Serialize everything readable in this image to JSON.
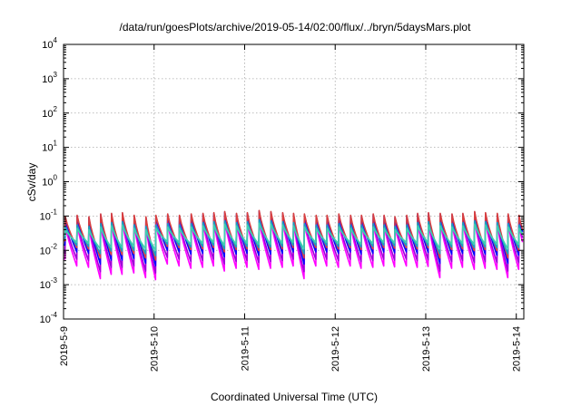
{
  "chart_data": {
    "type": "line",
    "title": "/data/run/goesPlots/archive/2019-05-14/02:00/flux/../bryn/5daysMars.plot",
    "xlabel": "Coordinated Universal Time (UTC)",
    "ylabel": "cSv/day",
    "y_scale": "log",
    "ylim": [
      0.0001,
      10000
    ],
    "xlim": [
      "2019-05-09",
      "2019-05-14 02:00"
    ],
    "grid": true,
    "legend": "none",
    "x_ticks": [
      {
        "value": 0,
        "label": "2019-5-9"
      },
      {
        "value": 1,
        "label": "2019-5-10"
      },
      {
        "value": 2,
        "label": "2019-5-11"
      },
      {
        "value": 3,
        "label": "2019-5-12"
      },
      {
        "value": 4,
        "label": "2019-5-13"
      },
      {
        "value": 5,
        "label": "2019-5-14"
      }
    ],
    "y_ticks": [
      {
        "value": 0.0001,
        "base": "10",
        "exp": "-4"
      },
      {
        "value": 0.001,
        "base": "10",
        "exp": "-3"
      },
      {
        "value": 0.01,
        "base": "10",
        "exp": "-2"
      },
      {
        "value": 0.1,
        "base": "10",
        "exp": "-1"
      },
      {
        "value": 1,
        "base": "10",
        "exp": "0"
      },
      {
        "value": 10,
        "base": "10",
        "exp": "1"
      },
      {
        "value": 100,
        "base": "10",
        "exp": "2"
      },
      {
        "value": 1000,
        "base": "10",
        "exp": "3"
      },
      {
        "value": 10000,
        "base": "10",
        "exp": "4"
      }
    ],
    "sawtooth_peak_times_days": [
      0.02,
      0.15,
      0.28,
      0.41,
      0.53,
      0.65,
      0.78,
      0.91,
      1.02,
      1.15,
      1.28,
      1.41,
      1.54,
      1.66,
      1.78,
      1.91,
      2.03,
      2.16,
      2.29,
      2.42,
      2.54,
      2.66,
      2.79,
      2.91,
      3.04,
      3.17,
      3.29,
      3.42,
      3.54,
      3.66,
      3.79,
      3.91,
      4.03,
      4.16,
      4.29,
      4.41,
      4.54,
      4.66,
      4.79,
      4.91,
      5.03,
      5.15
    ],
    "series": [
      {
        "color": "#ff00ff",
        "peak_values": [
          0.055,
          0.06,
          0.055,
          0.065,
          0.07,
          0.075,
          0.06,
          0.055,
          0.06,
          0.065,
          0.06,
          0.065,
          0.07,
          0.075,
          0.08,
          0.07,
          0.075,
          0.085,
          0.08,
          0.075,
          0.07,
          0.065,
          0.06,
          0.06,
          0.065,
          0.06,
          0.06,
          0.065,
          0.06,
          0.055,
          0.06,
          0.07,
          0.075,
          0.07,
          0.065,
          0.07,
          0.08,
          0.075,
          0.07,
          0.065,
          0.06,
          0.06
        ],
        "trough_values": [
          0.0035,
          0.0032,
          0.0015,
          0.002,
          0.002,
          0.0022,
          0.0016,
          0.0014,
          0.004,
          0.0035,
          0.003,
          0.0032,
          0.0035,
          0.0025,
          0.003,
          0.0032,
          0.0028,
          0.003,
          0.0032,
          0.0035,
          0.0015,
          0.0035,
          0.0035,
          0.0032,
          0.0035,
          0.003,
          0.0032,
          0.0035,
          0.0033,
          0.0035,
          0.0032,
          0.0034,
          0.0016,
          0.003,
          0.0032,
          0.0028,
          0.003,
          0.0028,
          0.0016,
          0.0028,
          0.003,
          0.003
        ]
      },
      {
        "color": "#a000d8",
        "peak_values": [
          0.065,
          0.072,
          0.066,
          0.078,
          0.084,
          0.09,
          0.072,
          0.066,
          0.072,
          0.078,
          0.072,
          0.078,
          0.084,
          0.09,
          0.096,
          0.084,
          0.09,
          0.102,
          0.096,
          0.09,
          0.084,
          0.078,
          0.072,
          0.072,
          0.078,
          0.072,
          0.072,
          0.078,
          0.072,
          0.066,
          0.072,
          0.084,
          0.09,
          0.084,
          0.078,
          0.084,
          0.096,
          0.09,
          0.084,
          0.078,
          0.072,
          0.072
        ],
        "trough_values": [
          0.0055,
          0.005,
          0.0024,
          0.0032,
          0.0032,
          0.0035,
          0.0025,
          0.0022,
          0.0062,
          0.0055,
          0.0047,
          0.005,
          0.0055,
          0.004,
          0.0047,
          0.005,
          0.0044,
          0.0047,
          0.005,
          0.0055,
          0.0024,
          0.0055,
          0.0055,
          0.005,
          0.0055,
          0.0047,
          0.005,
          0.0055,
          0.0052,
          0.0055,
          0.005,
          0.0053,
          0.0025,
          0.0047,
          0.005,
          0.0044,
          0.0047,
          0.0044,
          0.0025,
          0.0044,
          0.0047,
          0.0047
        ]
      },
      {
        "color": "#0000ff",
        "peak_values": [
          0.09,
          0.1,
          0.09,
          0.11,
          0.115,
          0.12,
          0.1,
          0.09,
          0.1,
          0.11,
          0.1,
          0.11,
          0.115,
          0.12,
          0.13,
          0.115,
          0.12,
          0.14,
          0.13,
          0.12,
          0.115,
          0.11,
          0.1,
          0.1,
          0.11,
          0.1,
          0.1,
          0.11,
          0.1,
          0.09,
          0.1,
          0.115,
          0.12,
          0.115,
          0.11,
          0.115,
          0.13,
          0.12,
          0.115,
          0.11,
          0.1,
          0.1
        ],
        "trough_values": [
          0.009,
          0.0082,
          0.004,
          0.0052,
          0.0052,
          0.0058,
          0.0042,
          0.0036,
          0.01,
          0.009,
          0.0078,
          0.0082,
          0.009,
          0.0065,
          0.0078,
          0.0082,
          0.0072,
          0.0078,
          0.0082,
          0.009,
          0.004,
          0.009,
          0.009,
          0.0082,
          0.009,
          0.0078,
          0.0082,
          0.009,
          0.0085,
          0.009,
          0.0082,
          0.0088,
          0.0042,
          0.0078,
          0.0082,
          0.0072,
          0.0078,
          0.0072,
          0.0042,
          0.0072,
          0.0078,
          0.0078
        ]
      },
      {
        "color": "#d84040",
        "peak_values": [
          0.095,
          0.105,
          0.095,
          0.115,
          0.12,
          0.125,
          0.105,
          0.095,
          0.105,
          0.115,
          0.105,
          0.115,
          0.12,
          0.125,
          0.135,
          0.12,
          0.125,
          0.145,
          0.135,
          0.125,
          0.12,
          0.115,
          0.105,
          0.105,
          0.115,
          0.105,
          0.105,
          0.115,
          0.105,
          0.095,
          0.105,
          0.12,
          0.125,
          0.12,
          0.115,
          0.12,
          0.135,
          0.125,
          0.12,
          0.115,
          0.105,
          0.105
        ],
        "trough_values": [
          0.012,
          0.011,
          0.006,
          0.0075,
          0.0075,
          0.008,
          0.006,
          0.0052,
          0.013,
          0.012,
          0.0105,
          0.011,
          0.012,
          0.009,
          0.0105,
          0.011,
          0.0098,
          0.0105,
          0.011,
          0.012,
          0.006,
          0.012,
          0.012,
          0.011,
          0.012,
          0.0105,
          0.011,
          0.012,
          0.0115,
          0.012,
          0.011,
          0.0118,
          0.006,
          0.0105,
          0.011,
          0.0098,
          0.0105,
          0.0098,
          0.006,
          0.0098,
          0.0105,
          0.0105
        ]
      },
      {
        "color": "#1aa0c0",
        "peak_values": [
          0.05,
          0.055,
          0.05,
          0.06,
          0.064,
          0.068,
          0.055,
          0.05,
          0.055,
          0.06,
          0.055,
          0.06,
          0.064,
          0.068,
          0.072,
          0.064,
          0.068,
          0.078,
          0.072,
          0.068,
          0.064,
          0.06,
          0.055,
          0.055,
          0.06,
          0.055,
          0.055,
          0.06,
          0.055,
          0.05,
          0.055,
          0.064,
          0.068,
          0.064,
          0.06,
          0.064,
          0.072,
          0.068,
          0.064,
          0.06,
          0.055,
          0.055
        ],
        "trough_values": [
          0.014,
          0.013,
          0.008,
          0.0095,
          0.0095,
          0.01,
          0.008,
          0.007,
          0.015,
          0.014,
          0.0125,
          0.013,
          0.014,
          0.011,
          0.0125,
          0.013,
          0.012,
          0.0125,
          0.013,
          0.014,
          0.008,
          0.014,
          0.014,
          0.013,
          0.014,
          0.0125,
          0.013,
          0.014,
          0.0135,
          0.014,
          0.013,
          0.0138,
          0.008,
          0.0125,
          0.013,
          0.012,
          0.0125,
          0.012,
          0.008,
          0.012,
          0.0125,
          0.0125
        ]
      },
      {
        "color": "#40d0b0",
        "peak_values": [
          0.04,
          0.044,
          0.04,
          0.048,
          0.052,
          0.055,
          0.044,
          0.04,
          0.044,
          0.048,
          0.044,
          0.048,
          0.052,
          0.055,
          0.058,
          0.052,
          0.055,
          0.062,
          0.058,
          0.055,
          0.052,
          0.048,
          0.044,
          0.044,
          0.048,
          0.044,
          0.044,
          0.048,
          0.044,
          0.04,
          0.044,
          0.052,
          0.055,
          0.052,
          0.048,
          0.052,
          0.058,
          0.055,
          0.052,
          0.048,
          0.044,
          0.044
        ],
        "trough_values": [
          0.017,
          0.016,
          0.011,
          0.012,
          0.012,
          0.013,
          0.011,
          0.01,
          0.018,
          0.017,
          0.015,
          0.016,
          0.017,
          0.014,
          0.015,
          0.016,
          0.015,
          0.015,
          0.016,
          0.017,
          0.011,
          0.017,
          0.017,
          0.016,
          0.017,
          0.015,
          0.016,
          0.017,
          0.0165,
          0.017,
          0.016,
          0.0168,
          0.011,
          0.015,
          0.016,
          0.015,
          0.015,
          0.015,
          0.011,
          0.015,
          0.015,
          0.015
        ]
      }
    ]
  }
}
